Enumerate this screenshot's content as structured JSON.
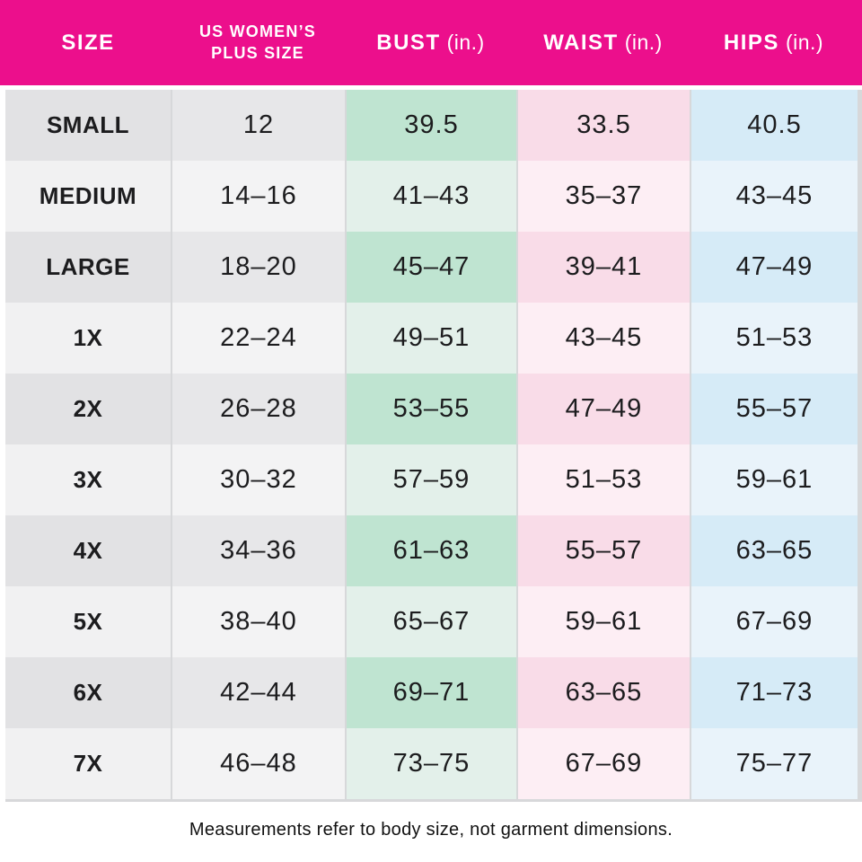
{
  "header": {
    "columns": [
      {
        "key": "size",
        "lines": [
          "SIZE"
        ],
        "unit": ""
      },
      {
        "key": "plus_size",
        "lines": [
          "US WOMEN’S",
          "PLUS SIZE"
        ],
        "unit": ""
      },
      {
        "key": "bust",
        "lines": [
          "BUST"
        ],
        "unit": "(in.)"
      },
      {
        "key": "waist",
        "lines": [
          "WAIST"
        ],
        "unit": "(in.)"
      },
      {
        "key": "hips",
        "lines": [
          "HIPS"
        ],
        "unit": "(in.)"
      }
    ]
  },
  "chart_data": {
    "type": "table",
    "title": "US Women's Plus Size measurement chart",
    "columns": [
      "SIZE",
      "US WOMEN’S PLUS SIZE",
      "BUST (in.)",
      "WAIST (in.)",
      "HIPS (in.)"
    ],
    "rows": [
      [
        "SMALL",
        "12",
        "39.5",
        "33.5",
        "40.5"
      ],
      [
        "MEDIUM",
        "14–16",
        "41–43",
        "35–37",
        "43–45"
      ],
      [
        "LARGE",
        "18–20",
        "45–47",
        "39–41",
        "47–49"
      ],
      [
        "1X",
        "22–24",
        "49–51",
        "43–45",
        "51–53"
      ],
      [
        "2X",
        "26–28",
        "53–55",
        "47–49",
        "55–57"
      ],
      [
        "3X",
        "30–32",
        "57–59",
        "51–53",
        "59–61"
      ],
      [
        "4X",
        "34–36",
        "61–63",
        "55–57",
        "63–65"
      ],
      [
        "5X",
        "38–40",
        "65–67",
        "59–61",
        "67–69"
      ],
      [
        "6X",
        "42–44",
        "69–71",
        "63–65",
        "71–73"
      ],
      [
        "7X",
        "46–48",
        "73–75",
        "67–69",
        "75–77"
      ]
    ],
    "footnote": "Measurements refer to body size, not garment dimensions."
  },
  "colors": {
    "header_bg": "#ec0f8c",
    "header_text": "#ffffff",
    "text": "#1c1c1e",
    "sep": "#d7d8da",
    "border": "#d7d8da",
    "size_dark": "#e2e2e4",
    "size_light": "#f1f1f2",
    "plus_dark": "#e7e7e9",
    "plus_light": "#f3f3f4",
    "bust_dark": "#bfe4d1",
    "bust_light": "#e3f0ea",
    "waist_dark": "#f9dce8",
    "waist_light": "#fdeef4",
    "hips_dark": "#d6ebf7",
    "hips_light": "#e9f3fa"
  }
}
